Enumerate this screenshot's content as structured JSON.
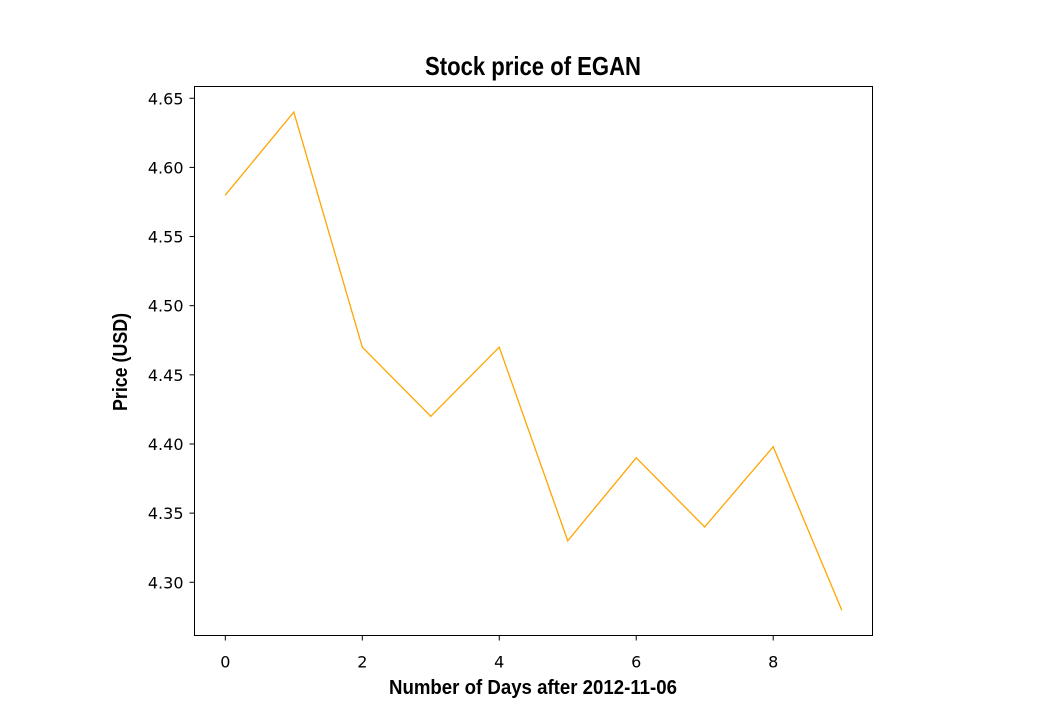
{
  "chart_data": {
    "type": "line",
    "title": "Stock price of EGAN",
    "xlabel": "Number of Days after 2012-11-06",
    "ylabel": "Price (USD)",
    "x": [
      0,
      1,
      2,
      3,
      4,
      5,
      6,
      7,
      8,
      9
    ],
    "series": [
      {
        "values": [
          4.58,
          4.64,
          4.47,
          4.42,
          4.47,
          4.33,
          4.39,
          4.34,
          4.398,
          4.28
        ],
        "color": "#ffa500"
      }
    ],
    "xlim": [
      -0.45,
      9.45
    ],
    "ylim": [
      4.2615,
      4.6585
    ],
    "xticks": [
      0,
      2,
      4,
      6,
      8
    ],
    "xtick_labels": [
      "0",
      "2",
      "4",
      "6",
      "8"
    ],
    "yticks": [
      4.3,
      4.35,
      4.4,
      4.45,
      4.5,
      4.55,
      4.6,
      4.65
    ],
    "ytick_labels": [
      "4.30",
      "4.35",
      "4.40",
      "4.45",
      "4.50",
      "4.55",
      "4.60",
      "4.65"
    ],
    "grid": false,
    "legend": false
  }
}
